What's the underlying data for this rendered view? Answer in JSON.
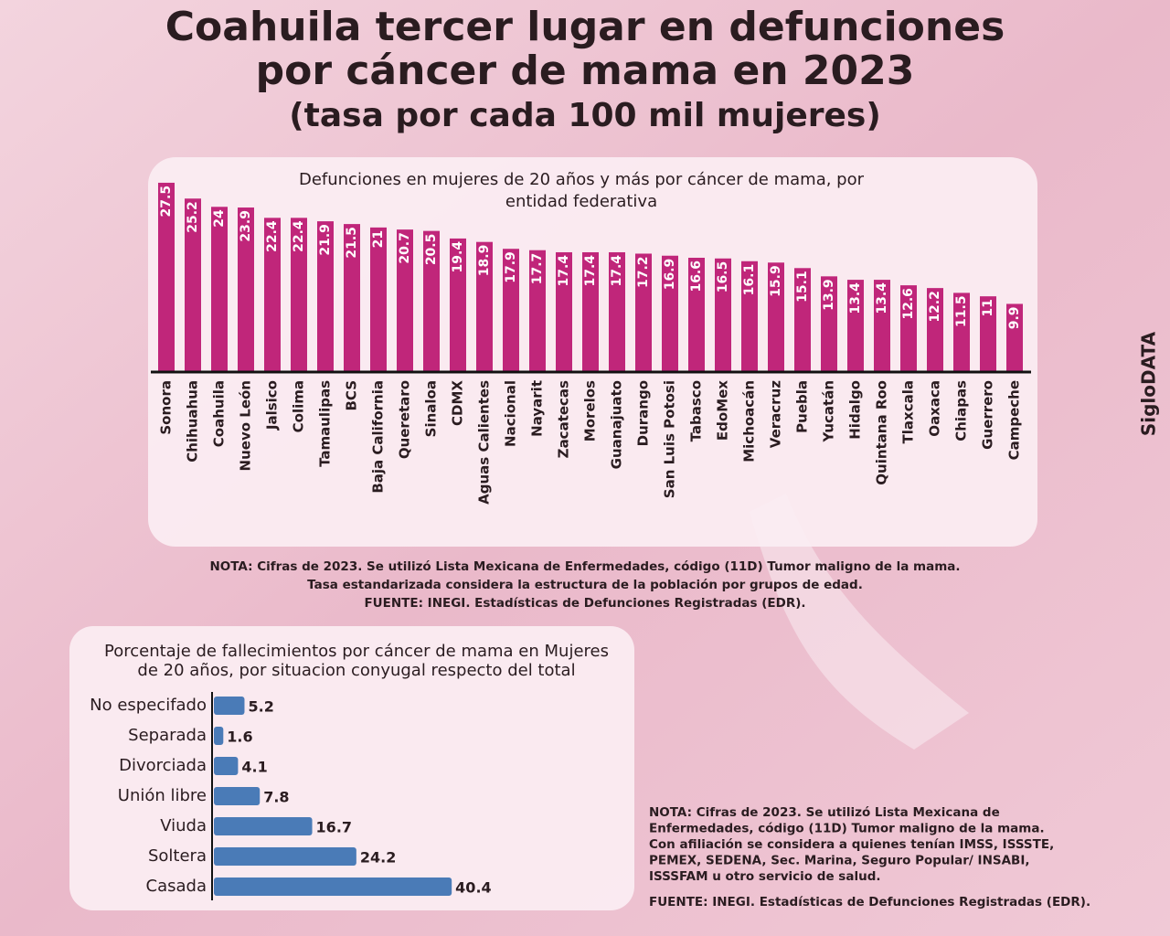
{
  "header": {
    "title_lines": [
      "Coahuila tercer lugar en defunciones",
      "por cáncer de mama en 2023"
    ],
    "subtitle": "(tasa por cada 100 mil mujeres)"
  },
  "brand": "SigloDATA",
  "chart_data": [
    {
      "type": "bar",
      "orientation": "vertical",
      "color": "#c0267a",
      "title_lines": [
        "Defunciones en mujeres de 20 años y más por cáncer de mama, por",
        "entidad federativa"
      ],
      "categories": [
        "Sonora",
        "Chihuahua",
        "Coahuila",
        "Nuevo León",
        "Jalsico",
        "Colima",
        "Tamaulipas",
        "BCS",
        "Baja California",
        "Queretaro",
        "Sinaloa",
        "CDMX",
        "Aguas Calientes",
        "Nacional",
        "Nayarit",
        "Zacatecas",
        "Morelos",
        "Guanajuato",
        "Durango",
        "San Luis Potosi",
        "Tabasco",
        "EdoMex",
        "Michoacán",
        "Veracruz",
        "Puebla",
        "Yucatán",
        "Hidalgo",
        "Quintana Roo",
        "Tlaxcala",
        "Oaxaca",
        "Chiapas",
        "Guerrero",
        "Campeche"
      ],
      "values": [
        27.5,
        25.2,
        24,
        23.9,
        22.4,
        22.4,
        21.9,
        21.5,
        21,
        20.7,
        20.5,
        19.4,
        18.9,
        17.9,
        17.7,
        17.4,
        17.4,
        17.4,
        17.2,
        16.9,
        16.6,
        16.5,
        16.1,
        15.9,
        15.1,
        13.9,
        13.4,
        13.4,
        12.6,
        12.2,
        11.5,
        11,
        9.9
      ],
      "notes": [
        "NOTA: Cifras de 2023. Se utilizó Lista Mexicana de Enfermedades, código (11D) Tumor maligno de la mama.",
        "Tasa estandarizada considera la estructura de la población por grupos de edad.",
        "FUENTE: INEGI. Estadísticas de Defunciones Registradas (EDR)."
      ]
    },
    {
      "type": "bar",
      "orientation": "horizontal",
      "color": "#4a7bb7",
      "title_lines": [
        "Porcentaje de fallecimientos por cáncer de mama en Mujeres",
        "de 20 años, por situacion conyugal respecto del total"
      ],
      "categories": [
        "No especifado",
        "Separada",
        "Divorciada",
        "Unión libre",
        "Viuda",
        "Soltera",
        "Casada"
      ],
      "values": [
        5.2,
        1.6,
        4.1,
        7.8,
        16.7,
        24.2,
        40.4
      ],
      "notes": [
        "NOTA: Cifras de 2023. Se utilizó Lista Mexicana de",
        "Enfermedades, código (11D) Tumor maligno de la mama.",
        "Con afiliación se considera a quienes tenían IMSS, ISSSTE,",
        "PEMEX, SEDENA, Sec. Marina, Seguro Popular/ INSABI,",
        "ISSSFAM u otro servicio de salud.",
        "FUENTE: INEGI. Estadísticas de Defunciones Registradas (EDR)."
      ]
    }
  ]
}
